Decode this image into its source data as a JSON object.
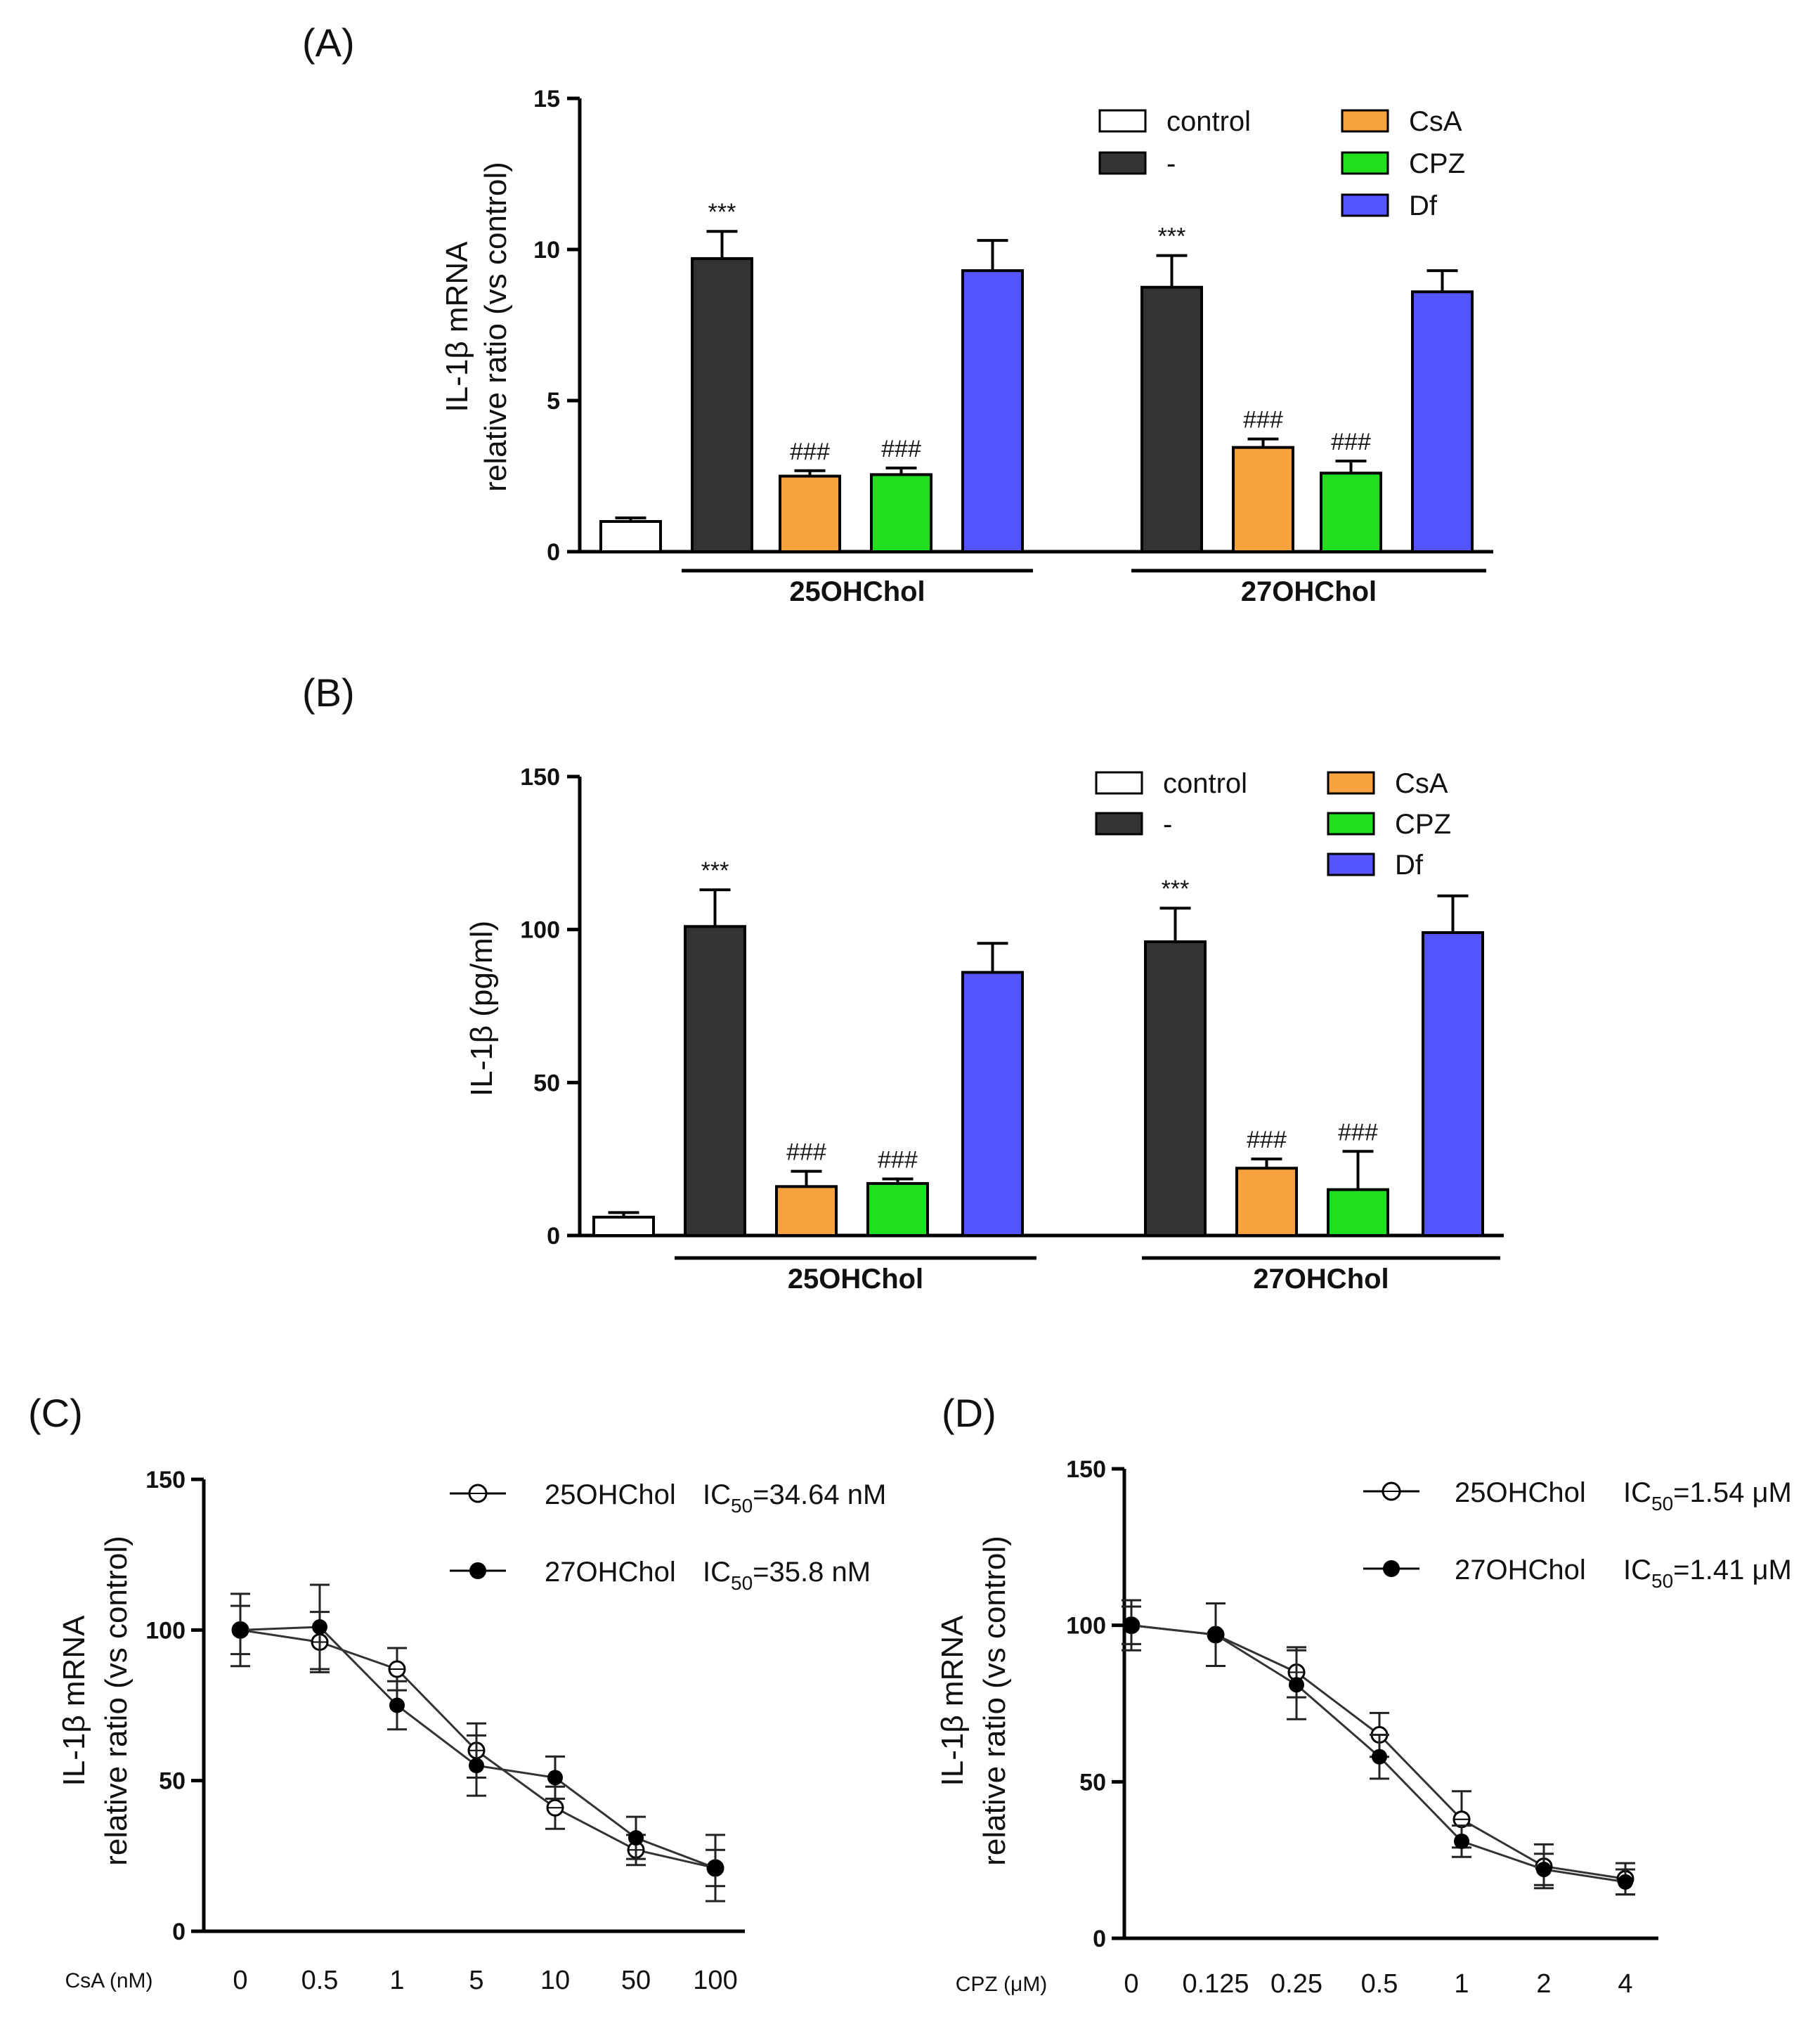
{
  "chart_data": [
    {
      "panel": "(A)",
      "type": "bar",
      "ylabel_line1": "IL-1β mRNA",
      "ylabel_line2": "relative ratio (vs control)",
      "ylim": [
        0,
        15
      ],
      "yticks": [
        "0",
        "5",
        "10",
        "15"
      ],
      "groups": [
        "25OHChol",
        "27OHChol"
      ],
      "legend": [
        {
          "name": "control",
          "color": "#ffffff"
        },
        {
          "name": "-",
          "color": "#333333"
        },
        {
          "name": "CsA",
          "color": "#f7a23c"
        },
        {
          "name": "CPZ",
          "color": "#1fe01f"
        },
        {
          "name": "Df",
          "color": "#5555ff"
        }
      ],
      "bars": [
        {
          "series": "control",
          "group": "",
          "value": 1.0,
          "err": 0.12,
          "sig": ""
        },
        {
          "series": "-",
          "group": "25OHChol",
          "value": 9.7,
          "err": 0.9,
          "sig": "***"
        },
        {
          "series": "CsA",
          "group": "25OHChol",
          "value": 2.5,
          "err": 0.18,
          "sig": "###"
        },
        {
          "series": "CPZ",
          "group": "25OHChol",
          "value": 2.55,
          "err": 0.22,
          "sig": "###"
        },
        {
          "series": "Df",
          "group": "25OHChol",
          "value": 9.3,
          "err": 1.0,
          "sig": ""
        },
        {
          "series": "-",
          "group": "27OHChol",
          "value": 8.75,
          "err": 1.05,
          "sig": "***"
        },
        {
          "series": "CsA",
          "group": "27OHChol",
          "value": 3.45,
          "err": 0.28,
          "sig": "###"
        },
        {
          "series": "CPZ",
          "group": "27OHChol",
          "value": 2.6,
          "err": 0.4,
          "sig": "###"
        },
        {
          "series": "Df",
          "group": "27OHChol",
          "value": 8.6,
          "err": 0.7,
          "sig": ""
        }
      ]
    },
    {
      "panel": "(B)",
      "type": "bar",
      "ylabel_line1": "IL-1β (pg/ml)",
      "ylim": [
        0,
        150
      ],
      "yticks": [
        "0",
        "50",
        "100",
        "150"
      ],
      "groups": [
        "25OHChol",
        "27OHChol"
      ],
      "legend": [
        {
          "name": "control",
          "color": "#ffffff"
        },
        {
          "name": "-",
          "color": "#333333"
        },
        {
          "name": "CsA",
          "color": "#f7a23c"
        },
        {
          "name": "CPZ",
          "color": "#1fe01f"
        },
        {
          "name": "Df",
          "color": "#5555ff"
        }
      ],
      "bars": [
        {
          "series": "control",
          "group": "",
          "value": 6,
          "err": 1.5,
          "sig": ""
        },
        {
          "series": "-",
          "group": "25OHChol",
          "value": 101,
          "err": 12,
          "sig": "***"
        },
        {
          "series": "CsA",
          "group": "25OHChol",
          "value": 16,
          "err": 5,
          "sig": "###"
        },
        {
          "series": "CPZ",
          "group": "25OHChol",
          "value": 17,
          "err": 1.5,
          "sig": "###"
        },
        {
          "series": "Df",
          "group": "25OHChol",
          "value": 86,
          "err": 9.5,
          "sig": ""
        },
        {
          "series": "-",
          "group": "27OHChol",
          "value": 96,
          "err": 11,
          "sig": "***"
        },
        {
          "series": "CsA",
          "group": "27OHChol",
          "value": 22,
          "err": 3,
          "sig": "###"
        },
        {
          "series": "CPZ",
          "group": "27OHChol",
          "value": 15,
          "err": 12.5,
          "sig": "###"
        },
        {
          "series": "Df",
          "group": "27OHChol",
          "value": 99,
          "err": 12,
          "sig": ""
        }
      ]
    },
    {
      "panel": "(C)",
      "type": "line",
      "ylabel_line1": "IL-1β mRNA",
      "ylabel_line2": "relative ratio (vs control)",
      "xname": "CsA (nM)",
      "categories": [
        "0",
        "0.5",
        "1",
        "5",
        "10",
        "50",
        "100"
      ],
      "ylim": [
        0,
        150
      ],
      "yticks": [
        "0",
        "50",
        "100",
        "150"
      ],
      "series": [
        {
          "name": "25OHChol",
          "ic50": "IC50=34.64 nM",
          "ic50_pre": "IC",
          "ic50_sub": "50",
          "ic50_post": "=34.64 nM",
          "filled": false,
          "values": [
            100,
            96,
            87,
            60,
            41,
            27,
            21
          ],
          "err": [
            8,
            10,
            7,
            9,
            7,
            5,
            6
          ]
        },
        {
          "name": "27OHChol",
          "ic50": "IC50=35.8 nM",
          "ic50_pre": "IC",
          "ic50_sub": "50",
          "ic50_post": "=35.8 nM",
          "filled": true,
          "values": [
            100,
            101,
            75,
            55,
            51,
            31,
            21
          ],
          "err": [
            12,
            14,
            8,
            10,
            7,
            7,
            11
          ]
        }
      ]
    },
    {
      "panel": "(D)",
      "type": "line",
      "ylabel_line1": "IL-1β mRNA",
      "ylabel_line2": "relative ratio (vs control)",
      "xname": "CPZ (μM)",
      "categories": [
        "0",
        "0.125",
        "0.25",
        "0.5",
        "1",
        "2",
        "4"
      ],
      "ylim": [
        0,
        150
      ],
      "yticks": [
        "0",
        "50",
        "100",
        "150"
      ],
      "series": [
        {
          "name": "25OHChol",
          "ic50": "IC50=1.54 μM",
          "ic50_pre": "IC",
          "ic50_sub": "50",
          "ic50_post": "=1.54 μM",
          "filled": false,
          "values": [
            100,
            97,
            85,
            65,
            38,
            23,
            19
          ],
          "err": [
            6,
            10,
            8,
            7,
            9,
            7,
            5
          ]
        },
        {
          "name": "27OHChol",
          "ic50": "IC50=1.41 μM",
          "ic50_pre": "IC",
          "ic50_sub": "50",
          "ic50_post": "=1.41 μM",
          "filled": true,
          "values": [
            100,
            97,
            81,
            58,
            31,
            22,
            18
          ],
          "err": [
            8,
            10,
            11,
            7,
            5,
            5,
            4
          ]
        }
      ]
    }
  ]
}
